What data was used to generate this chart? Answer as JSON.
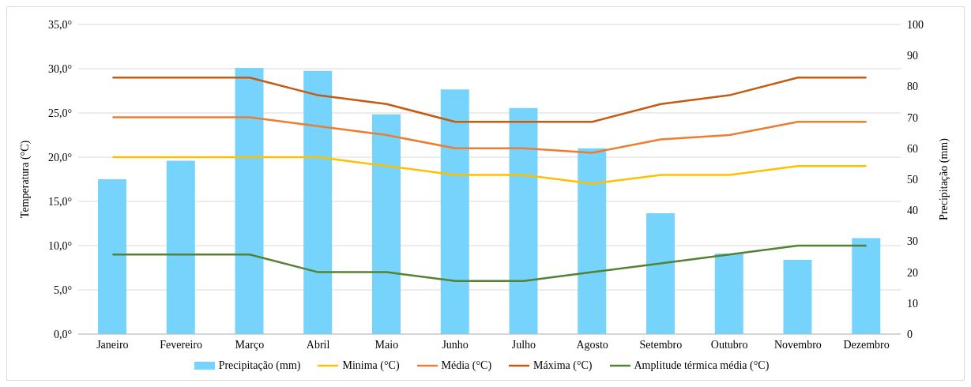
{
  "chart_data": {
    "type": "bar",
    "categories": [
      "Janeiro",
      "Fevereiro",
      "Março",
      "Abril",
      "Maio",
      "Junho",
      "Julho",
      "Agosto",
      "Setembro",
      "Outubro",
      "Novembro",
      "Dezembro"
    ],
    "ylabel": "Temperatura (°C)",
    "y2label": "Precipitação (mm)",
    "ylim": [
      0,
      35
    ],
    "yticks": [
      {
        "value": 0,
        "label": "0,0°"
      },
      {
        "value": 5,
        "label": "5,0°"
      },
      {
        "value": 10,
        "label": "10,0°"
      },
      {
        "value": 15,
        "label": "15,0°"
      },
      {
        "value": 20,
        "label": "20,0°"
      },
      {
        "value": 25,
        "label": "25,0°"
      },
      {
        "value": 30,
        "label": "30,0°"
      },
      {
        "value": 35,
        "label": "35,0°"
      }
    ],
    "y2lim": [
      0,
      100
    ],
    "y2ticks": [
      0,
      10,
      20,
      30,
      40,
      50,
      60,
      70,
      80,
      90,
      100
    ],
    "grid": "y",
    "legend": "bottom",
    "marker": "none",
    "line_style": "solid",
    "series": [
      {
        "name": "Precipitação (mm)",
        "axis": "y2",
        "color": "#75d3fc",
        "values": [
          50,
          56,
          86,
          85,
          71,
          79,
          73,
          60,
          39,
          26,
          24,
          31
        ]
      },
      {
        "name": "Minima (°C)",
        "type": "line",
        "color": "#ffc000",
        "values": [
          20,
          20,
          20,
          20,
          19,
          18,
          18,
          17,
          18,
          18,
          19,
          19
        ]
      },
      {
        "name": "Média (°C)",
        "type": "line",
        "color": "#ed7d31",
        "values": [
          24.5,
          24.5,
          24.5,
          23.5,
          22.5,
          21,
          21,
          20.5,
          22,
          22.5,
          24,
          24
        ]
      },
      {
        "name": "Máxima (°C)",
        "type": "line",
        "color": "#c55a11",
        "values": [
          29,
          29,
          29,
          27,
          26,
          24,
          24,
          24,
          26,
          27,
          29,
          29
        ]
      },
      {
        "name": "Amplitude térmica média (°C)",
        "type": "line",
        "color": "#548235",
        "values": [
          9,
          9,
          9,
          7,
          7,
          6,
          6,
          7,
          8,
          9,
          10,
          10
        ]
      }
    ]
  }
}
